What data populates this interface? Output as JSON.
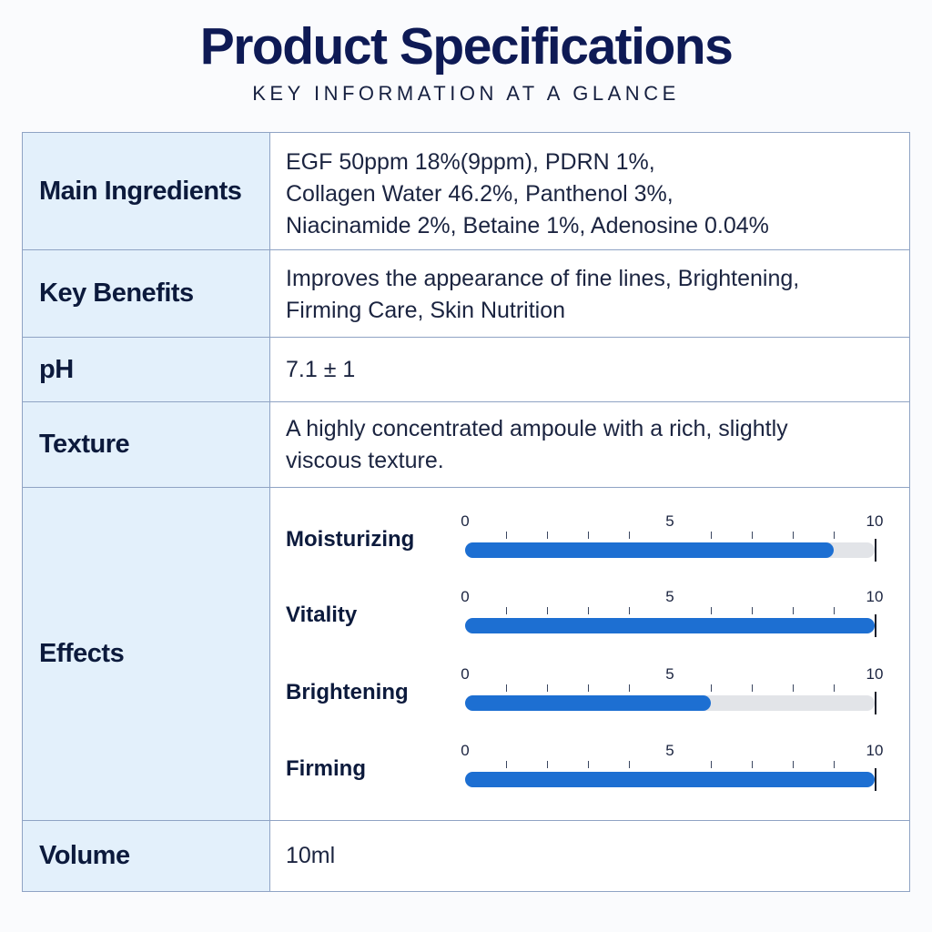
{
  "header": {
    "title": "Product Specifications",
    "subtitle": "KEY INFORMATION AT A GLANCE"
  },
  "rows": {
    "ingredients": {
      "label": "Main Ingredients",
      "lines": [
        "EGF 50ppm 18%(9ppm), PDRN 1%,",
        "Collagen Water 46.2%, Panthenol 3%,",
        "Niacinamide 2%, Betaine 1%, Adenosine 0.04%"
      ]
    },
    "benefits": {
      "label": "Key Benefits",
      "lines": [
        "Improves the appearance of fine lines, Brightening,",
        "Firming Care, Skin Nutrition"
      ]
    },
    "ph": {
      "label": "pH",
      "value": "7.1 ± 1"
    },
    "texture": {
      "label": "Texture",
      "lines": [
        "A highly concentrated ampoule with a rich, slightly",
        "viscous texture."
      ]
    },
    "effects": {
      "label": "Effects",
      "scale": {
        "min": "0",
        "mid": "5",
        "max": "10"
      },
      "items": [
        {
          "name": "Moisturizing",
          "value": 9
        },
        {
          "name": "Vitality",
          "value": 10
        },
        {
          "name": "Brightening",
          "value": 6
        },
        {
          "name": "Firming",
          "value": 10
        }
      ]
    },
    "volume": {
      "label": "Volume",
      "value": "10ml"
    }
  },
  "colors": {
    "title": "#0e1a55",
    "label_bg": "#e3f0fb",
    "bar_fill": "#1d6fd2",
    "bar_track": "#e2e4e8",
    "border": "#8fa3c4"
  }
}
